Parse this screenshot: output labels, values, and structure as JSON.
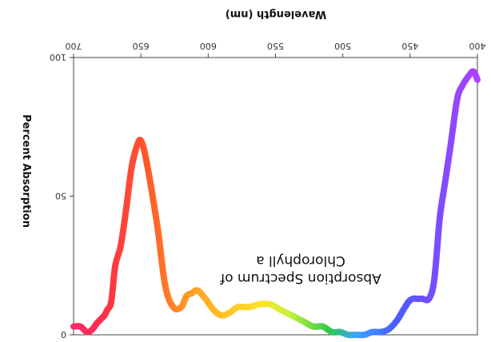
{
  "chart_data": {
    "type": "line",
    "title": "",
    "xlabel": "Wavelength (nm)",
    "ylabel": "Percent Absorption",
    "annotation": [
      "Absorption Spectrum of",
      "Chlorophyll a"
    ],
    "x_ticks": [
      "400",
      "450",
      "500",
      "550",
      "600",
      "650",
      "700"
    ],
    "y_ticks": [
      "0",
      "50",
      "100"
    ],
    "xlim": [
      400,
      700
    ],
    "ylim": [
      0,
      100
    ],
    "grid": false,
    "orientation": "rotated-180",
    "series": [
      {
        "x": [
          400,
          403,
          407,
          411,
          415,
          420,
          424,
          428,
          432,
          436,
          441,
          445,
          448,
          451,
          455,
          460,
          466,
          472,
          478,
          484,
          490,
          496,
          502,
          508,
          515,
          522,
          530,
          538,
          546,
          554,
          562,
          570,
          578,
          584,
          590,
          596,
          602,
          608,
          612,
          616,
          620,
          626,
          632,
          638,
          646,
          650,
          653,
          657,
          661,
          665,
          669,
          672,
          675,
          677,
          679,
          681,
          683,
          686,
          690,
          695,
          700
        ],
        "y": [
          92,
          95,
          93,
          90,
          85,
          68,
          55,
          42,
          20,
          13,
          13,
          13,
          13,
          12,
          9,
          5,
          2,
          1,
          1,
          0,
          0,
          0,
          1,
          1,
          3,
          3,
          5,
          7,
          9,
          11,
          11,
          10,
          10,
          8,
          7,
          9,
          13,
          16,
          15,
          14,
          10,
          10,
          18,
          40,
          63,
          70,
          68,
          60,
          45,
          32,
          25,
          12,
          9,
          7,
          6,
          5,
          4,
          2,
          1,
          3,
          3
        ]
      }
    ],
    "gradient": [
      {
        "x": 400,
        "color": "#b040ff"
      },
      {
        "x": 430,
        "color": "#7a4dff"
      },
      {
        "x": 460,
        "color": "#4a5bff"
      },
      {
        "x": 490,
        "color": "#3fa5ff"
      },
      {
        "x": 510,
        "color": "#2fc94a"
      },
      {
        "x": 540,
        "color": "#c8f23b"
      },
      {
        "x": 560,
        "color": "#ffe22a"
      },
      {
        "x": 590,
        "color": "#ffc126"
      },
      {
        "x": 615,
        "color": "#ff9a24"
      },
      {
        "x": 645,
        "color": "#ff5a2a"
      },
      {
        "x": 680,
        "color": "#ff2d4a"
      },
      {
        "x": 700,
        "color": "#ff2a6a"
      }
    ]
  }
}
